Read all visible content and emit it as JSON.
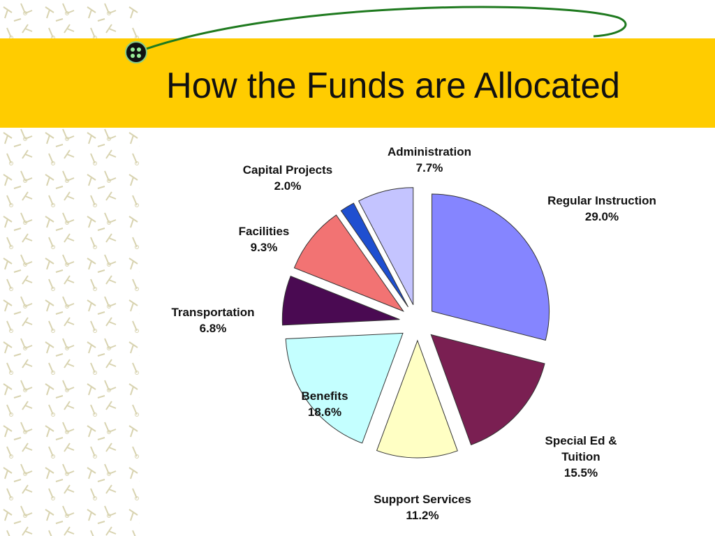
{
  "chart_data": {
    "type": "pie",
    "title": "How the Funds are Allocated",
    "categories": [
      "Regular Instruction",
      "Special Ed & Tuition",
      "Support Services",
      "Benefits",
      "Transportation",
      "Facilities",
      "Capital Projects",
      "Administration"
    ],
    "values": [
      29.0,
      15.5,
      11.2,
      18.6,
      6.8,
      9.3,
      2.0,
      7.7
    ],
    "value_labels": [
      "29.0%",
      "15.5%",
      "11.2%",
      "18.6%",
      "6.8%",
      "9.3%",
      "2.0%",
      "7.7%"
    ],
    "colors": [
      "#8585ff",
      "#7a1f52",
      "#ffffc4",
      "#c4ffff",
      "#4a0a52",
      "#f27373",
      "#1f4fd0",
      "#c4c4ff"
    ]
  }
}
